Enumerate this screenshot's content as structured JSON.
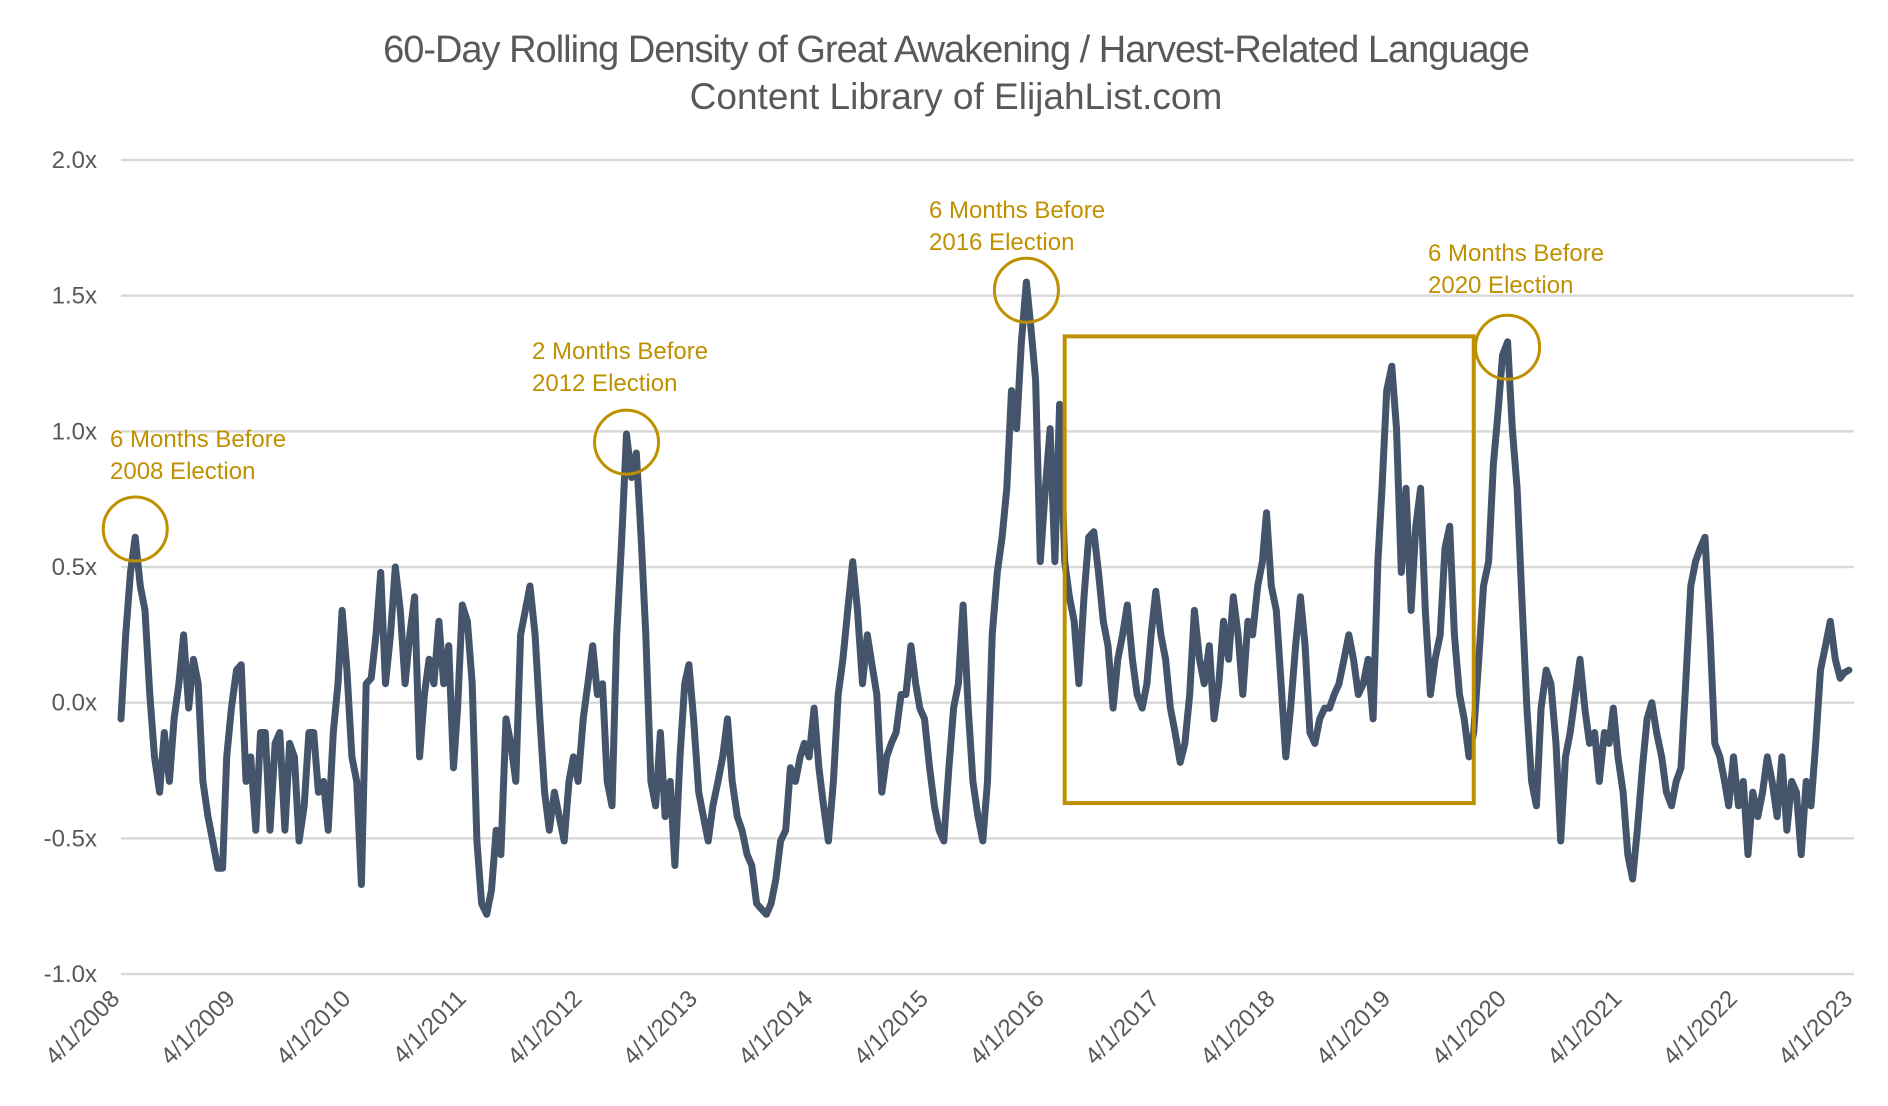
{
  "chart_data": {
    "type": "line",
    "title": "60-Day Rolling Density of Great Awakening / Harvest-Related Language",
    "subtitle": "Content Library of ElijahList.com",
    "xlabel": "",
    "ylabel": "",
    "ylim": [
      -1.0,
      2.0
    ],
    "xlim": [
      "2008-04-01",
      "2023-04-01"
    ],
    "y_ticks": [
      {
        "value": 2.0,
        "label": "2.0x"
      },
      {
        "value": 1.5,
        "label": "1.5x"
      },
      {
        "value": 1.0,
        "label": "1.0x"
      },
      {
        "value": 0.5,
        "label": "0.5x"
      },
      {
        "value": 0.0,
        "label": "0.0x"
      },
      {
        "value": -0.5,
        "label": "-0.5x"
      },
      {
        "value": -1.0,
        "label": "-1.0x"
      }
    ],
    "x_ticks": [
      {
        "date": "2008-04-01",
        "label": "4/1/2008"
      },
      {
        "date": "2009-04-01",
        "label": "4/1/2009"
      },
      {
        "date": "2010-04-01",
        "label": "4/1/2010"
      },
      {
        "date": "2011-04-01",
        "label": "4/1/2011"
      },
      {
        "date": "2012-04-01",
        "label": "4/1/2012"
      },
      {
        "date": "2013-04-01",
        "label": "4/1/2013"
      },
      {
        "date": "2014-04-01",
        "label": "4/1/2014"
      },
      {
        "date": "2015-04-01",
        "label": "4/1/2015"
      },
      {
        "date": "2016-04-01",
        "label": "4/1/2016"
      },
      {
        "date": "2017-04-01",
        "label": "4/1/2017"
      },
      {
        "date": "2018-04-01",
        "label": "4/1/2018"
      },
      {
        "date": "2019-04-01",
        "label": "4/1/2019"
      },
      {
        "date": "2020-04-01",
        "label": "4/1/2020"
      },
      {
        "date": "2021-04-01",
        "label": "4/1/2021"
      },
      {
        "date": "2022-04-01",
        "label": "4/1/2022"
      },
      {
        "date": "2023-04-01",
        "label": "4/1/2023"
      }
    ],
    "grid": "horizontal",
    "legend": "none",
    "colors": {
      "line": "#44546A",
      "annotation": "#BF9000",
      "grid": "#D9D9D9",
      "text": "#595959"
    },
    "series": [
      {
        "x": [
          "2008-04-01",
          "2008-04-16",
          "2008-05-01",
          "2008-05-16",
          "2008-06-01",
          "2008-06-16",
          "2008-07-01",
          "2008-07-16",
          "2008-08-01",
          "2008-08-16",
          "2008-09-01",
          "2008-09-16",
          "2008-10-01",
          "2008-10-16",
          "2008-11-01",
          "2008-11-16",
          "2008-12-01",
          "2008-12-16",
          "2009-01-01",
          "2009-01-16",
          "2009-02-01",
          "2009-02-16",
          "2009-03-01",
          "2009-03-16",
          "2009-04-01",
          "2009-04-16",
          "2009-05-01",
          "2009-05-16",
          "2009-06-01",
          "2009-06-16",
          "2009-07-01",
          "2009-07-16",
          "2009-08-01",
          "2009-08-16",
          "2009-09-01",
          "2009-09-16",
          "2009-10-01",
          "2009-10-16",
          "2009-11-01",
          "2009-11-16",
          "2009-12-01",
          "2009-12-16",
          "2010-01-01",
          "2010-01-16",
          "2010-02-01",
          "2010-02-16",
          "2010-03-01",
          "2010-03-16",
          "2010-04-01",
          "2010-04-16",
          "2010-05-01",
          "2010-05-16",
          "2010-06-01",
          "2010-06-16",
          "2010-07-01",
          "2010-07-16",
          "2010-08-01",
          "2010-08-16",
          "2010-09-01",
          "2010-09-16",
          "2010-10-01",
          "2010-10-16",
          "2010-11-01",
          "2010-11-16",
          "2010-12-01",
          "2010-12-16",
          "2011-01-01",
          "2011-01-16",
          "2011-02-01",
          "2011-02-16",
          "2011-03-01",
          "2011-03-16",
          "2011-04-01",
          "2011-04-16",
          "2011-05-01",
          "2011-05-16",
          "2011-06-01",
          "2011-06-16",
          "2011-07-01",
          "2011-07-16",
          "2011-08-01",
          "2011-08-16",
          "2011-09-01",
          "2011-09-16",
          "2011-10-01",
          "2011-10-16",
          "2011-11-01",
          "2011-11-16",
          "2011-12-01",
          "2011-12-16",
          "2012-01-01",
          "2012-01-16",
          "2012-02-01",
          "2012-02-16",
          "2012-03-01",
          "2012-03-16",
          "2012-04-01",
          "2012-04-16",
          "2012-05-01",
          "2012-05-16",
          "2012-06-01",
          "2012-06-16",
          "2012-07-01",
          "2012-07-16",
          "2012-08-01",
          "2012-08-16",
          "2012-09-01",
          "2012-09-16",
          "2012-10-01",
          "2012-10-16",
          "2012-11-01",
          "2012-11-16",
          "2012-12-01",
          "2012-12-16",
          "2013-01-01",
          "2013-01-16",
          "2013-02-01",
          "2013-02-16",
          "2013-03-01",
          "2013-03-16",
          "2013-04-01",
          "2013-04-16",
          "2013-05-01",
          "2013-05-16",
          "2013-06-01",
          "2013-06-16",
          "2013-07-01",
          "2013-07-16",
          "2013-08-01",
          "2013-08-16",
          "2013-09-01",
          "2013-09-16",
          "2013-10-01",
          "2013-10-16",
          "2013-11-01",
          "2013-11-16",
          "2013-12-01",
          "2013-12-16",
          "2014-01-01",
          "2014-01-16",
          "2014-02-01",
          "2014-02-16",
          "2014-03-01",
          "2014-03-16",
          "2014-04-01",
          "2014-04-16",
          "2014-05-01",
          "2014-05-16",
          "2014-06-01",
          "2014-06-16",
          "2014-07-01",
          "2014-07-16",
          "2014-08-01",
          "2014-08-16",
          "2014-09-01",
          "2014-09-16",
          "2014-10-01",
          "2014-10-16",
          "2014-11-01",
          "2014-11-16",
          "2014-12-01",
          "2014-12-16",
          "2015-01-01",
          "2015-01-16",
          "2015-02-01",
          "2015-02-16",
          "2015-03-01",
          "2015-03-16",
          "2015-04-01",
          "2015-04-16",
          "2015-05-01",
          "2015-05-16",
          "2015-06-01",
          "2015-06-16",
          "2015-07-01",
          "2015-07-16",
          "2015-08-01",
          "2015-08-16",
          "2015-09-01",
          "2015-09-16",
          "2015-10-01",
          "2015-10-16",
          "2015-11-01",
          "2015-11-16",
          "2015-12-01",
          "2015-12-16",
          "2016-01-01",
          "2016-01-16",
          "2016-02-01",
          "2016-02-16",
          "2016-03-01",
          "2016-03-16",
          "2016-04-01",
          "2016-04-16",
          "2016-05-01",
          "2016-05-16",
          "2016-06-01",
          "2016-06-16",
          "2016-07-01",
          "2016-07-16",
          "2016-08-01",
          "2016-08-16",
          "2016-09-01",
          "2016-09-16",
          "2016-10-01",
          "2016-10-16",
          "2016-11-01",
          "2016-11-16",
          "2016-12-01",
          "2016-12-16",
          "2017-01-01",
          "2017-01-16",
          "2017-02-01",
          "2017-02-16",
          "2017-03-01",
          "2017-03-16",
          "2017-04-01",
          "2017-04-16",
          "2017-05-01",
          "2017-05-16",
          "2017-06-01",
          "2017-06-16",
          "2017-07-01",
          "2017-07-16",
          "2017-08-01",
          "2017-08-16",
          "2017-09-01",
          "2017-09-16",
          "2017-10-01",
          "2017-10-16",
          "2017-11-01",
          "2017-11-16",
          "2017-12-01",
          "2017-12-16",
          "2018-01-01",
          "2018-01-16",
          "2018-02-01",
          "2018-02-16",
          "2018-03-01",
          "2018-03-16",
          "2018-04-01",
          "2018-04-16",
          "2018-05-01",
          "2018-05-16",
          "2018-06-01",
          "2018-06-16",
          "2018-07-01",
          "2018-07-16",
          "2018-08-01",
          "2018-08-16",
          "2018-09-01",
          "2018-09-16",
          "2018-10-01",
          "2018-10-16",
          "2018-11-01",
          "2018-11-16",
          "2018-12-01",
          "2018-12-16",
          "2019-01-01",
          "2019-01-16",
          "2019-02-01",
          "2019-02-16",
          "2019-03-01",
          "2019-03-16",
          "2019-04-01",
          "2019-04-16",
          "2019-05-01",
          "2019-05-16",
          "2019-06-01",
          "2019-06-16",
          "2019-07-01",
          "2019-07-16",
          "2019-08-01",
          "2019-08-16",
          "2019-09-01",
          "2019-09-16",
          "2019-10-01",
          "2019-10-16",
          "2019-11-01",
          "2019-11-16",
          "2019-12-01",
          "2019-12-16",
          "2020-01-01",
          "2020-01-16",
          "2020-02-01",
          "2020-02-16",
          "2020-03-01",
          "2020-03-16",
          "2020-04-01",
          "2020-04-16",
          "2020-05-01",
          "2020-05-16",
          "2020-06-01",
          "2020-06-16",
          "2020-07-01",
          "2020-07-16",
          "2020-08-01",
          "2020-08-16",
          "2020-09-01",
          "2020-09-16",
          "2020-10-01",
          "2020-10-16",
          "2020-11-01",
          "2020-11-16",
          "2020-12-01",
          "2020-12-16",
          "2021-01-01",
          "2021-01-16",
          "2021-02-01",
          "2021-02-16",
          "2021-03-01",
          "2021-03-16",
          "2021-04-01",
          "2021-04-16",
          "2021-05-01",
          "2021-05-16",
          "2021-06-01",
          "2021-06-16",
          "2021-07-01",
          "2021-07-16",
          "2021-08-01",
          "2021-08-16",
          "2021-09-01",
          "2021-09-16",
          "2021-10-01",
          "2021-10-16",
          "2021-11-01",
          "2021-11-16",
          "2021-12-01",
          "2021-12-16",
          "2022-01-01",
          "2022-01-16",
          "2022-02-01",
          "2022-02-16",
          "2022-03-01",
          "2022-03-16",
          "2022-04-01",
          "2022-04-16",
          "2022-05-01",
          "2022-05-16",
          "2022-06-01",
          "2022-06-16",
          "2022-07-01",
          "2022-07-16",
          "2022-08-01",
          "2022-08-16",
          "2022-09-01",
          "2022-09-16",
          "2022-10-01",
          "2022-10-16",
          "2022-11-01",
          "2022-11-16",
          "2022-12-01",
          "2022-12-16",
          "2023-01-01",
          "2023-01-16",
          "2023-02-01",
          "2023-02-16",
          "2023-03-01",
          "2023-03-16"
        ],
        "y": [
          -0.06,
          0.25,
          0.48,
          0.61,
          0.43,
          0.34,
          0.03,
          -0.2,
          -0.33,
          -0.11,
          -0.29,
          -0.06,
          0.07,
          0.25,
          -0.02,
          0.16,
          0.07,
          -0.29,
          -0.42,
          -0.51,
          -0.61,
          -0.61,
          -0.2,
          -0.02,
          0.12,
          0.14,
          -0.29,
          -0.2,
          -0.47,
          -0.11,
          -0.11,
          -0.47,
          -0.15,
          -0.11,
          -0.47,
          -0.15,
          -0.2,
          -0.51,
          -0.38,
          -0.11,
          -0.11,
          -0.33,
          -0.29,
          -0.47,
          -0.11,
          0.07,
          0.34,
          0.12,
          -0.2,
          -0.29,
          -0.67,
          0.07,
          0.09,
          0.25,
          0.48,
          0.07,
          0.25,
          0.5,
          0.34,
          0.07,
          0.25,
          0.39,
          -0.2,
          0.03,
          0.16,
          0.07,
          0.3,
          0.07,
          0.21,
          -0.24,
          -0.02,
          0.36,
          0.3,
          0.07,
          -0.51,
          -0.74,
          -0.78,
          -0.69,
          -0.47,
          -0.56,
          -0.06,
          -0.15,
          -0.29,
          0.25,
          0.34,
          0.43,
          0.25,
          -0.06,
          -0.33,
          -0.47,
          -0.33,
          -0.42,
          -0.51,
          -0.29,
          -0.2,
          -0.29,
          -0.06,
          0.07,
          0.21,
          0.03,
          0.07,
          -0.29,
          -0.38,
          0.25,
          0.61,
          0.99,
          0.83,
          0.92,
          0.61,
          0.25,
          -0.29,
          -0.38,
          -0.11,
          -0.42,
          -0.29,
          -0.6,
          -0.2,
          0.07,
          0.14,
          -0.06,
          -0.33,
          -0.42,
          -0.51,
          -0.38,
          -0.29,
          -0.2,
          -0.06,
          -0.29,
          -0.42,
          -0.47,
          -0.56,
          -0.6,
          -0.74,
          -0.76,
          -0.78,
          -0.74,
          -0.65,
          -0.51,
          -0.47,
          -0.24,
          -0.29,
          -0.2,
          -0.15,
          -0.2,
          -0.02,
          -0.24,
          -0.38,
          -0.51,
          -0.29,
          0.03,
          0.16,
          0.34,
          0.52,
          0.34,
          0.07,
          0.25,
          0.14,
          0.03,
          -0.33,
          -0.2,
          -0.15,
          -0.11,
          0.03,
          0.03,
          0.21,
          0.07,
          -0.02,
          -0.06,
          -0.24,
          -0.38,
          -0.47,
          -0.51,
          -0.24,
          -0.02,
          0.07,
          0.36,
          -0.02,
          -0.29,
          -0.42,
          -0.51,
          -0.29,
          0.25,
          0.48,
          0.61,
          0.79,
          1.15,
          1.01,
          1.33,
          1.55,
          1.37,
          1.19,
          0.52,
          0.79,
          1.01,
          0.52,
          1.1,
          0.52,
          0.39,
          0.3,
          0.07,
          0.39,
          0.61,
          0.63,
          0.48,
          0.3,
          0.21,
          -0.02,
          0.16,
          0.25,
          0.36,
          0.16,
          0.03,
          -0.02,
          0.07,
          0.25,
          0.41,
          0.25,
          0.16,
          -0.02,
          -0.11,
          -0.22,
          -0.15,
          0.03,
          0.34,
          0.16,
          0.07,
          0.21,
          -0.06,
          0.07,
          0.3,
          0.16,
          0.39,
          0.25,
          0.03,
          0.3,
          0.25,
          0.43,
          0.52,
          0.7,
          0.43,
          0.34,
          0.07,
          -0.2,
          -0.02,
          0.21,
          0.39,
          0.21,
          -0.11,
          -0.15,
          -0.06,
          -0.02,
          -0.02,
          0.03,
          0.07,
          0.16,
          0.25,
          0.16,
          0.03,
          0.07,
          0.16,
          -0.06,
          0.52,
          0.79,
          1.15,
          1.24,
          1.01,
          0.48,
          0.79,
          0.34,
          0.65,
          0.79,
          0.34,
          0.03,
          0.16,
          0.25,
          0.57,
          0.65,
          0.25,
          0.03,
          -0.06,
          -0.2,
          -0.11,
          0.16,
          0.43,
          0.52,
          0.88,
          1.06,
          1.28,
          1.33,
          1.01,
          0.79,
          0.39,
          -0.02,
          -0.29,
          -0.38,
          -0.02,
          0.12,
          0.07,
          -0.15,
          -0.51,
          -0.2,
          -0.11,
          0.03,
          0.16,
          -0.02,
          -0.15,
          -0.11,
          -0.29,
          -0.11,
          -0.15,
          -0.02,
          -0.2,
          -0.33,
          -0.56,
          -0.65,
          -0.47,
          -0.24,
          -0.06,
          0.0,
          -0.11,
          -0.2,
          -0.33,
          -0.38,
          -0.29,
          -0.24,
          0.07,
          0.43,
          0.52,
          0.57,
          0.61,
          0.25,
          -0.15,
          -0.2,
          -0.29,
          -0.38,
          -0.2,
          -0.38,
          -0.29,
          -0.56,
          -0.33,
          -0.42,
          -0.33,
          -0.2,
          -0.29,
          -0.42,
          -0.2,
          -0.47,
          -0.29,
          -0.33,
          -0.56,
          -0.29,
          -0.38,
          -0.15,
          0.12,
          0.21,
          0.3,
          0.16,
          0.09,
          0.11,
          0.12
        ]
      }
    ],
    "annotations": [
      {
        "lines": [
          "6 Months Before",
          "2008 Election"
        ],
        "circle": {
          "date": "2008-05-16",
          "value": 0.64
        }
      },
      {
        "lines": [
          "2 Months Before",
          "2012 Election"
        ],
        "circle": {
          "date": "2012-08-16",
          "value": 0.96
        }
      },
      {
        "lines": [
          "6 Months Before",
          "2016 Election"
        ],
        "circle": {
          "date": "2016-02-01",
          "value": 1.52
        }
      },
      {
        "lines": [
          "6 Months Before",
          "2020 Election"
        ],
        "circle": {
          "date": "2020-04-01",
          "value": 1.31
        }
      }
    ],
    "highlight_box": {
      "x_range": [
        "2016-06-01",
        "2019-12-16"
      ],
      "y_range": [
        -0.37,
        1.35
      ]
    }
  }
}
